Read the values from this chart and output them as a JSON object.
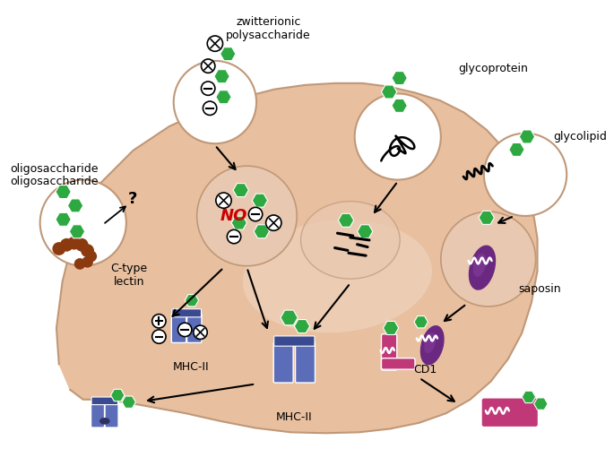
{
  "bg_color": "#FFFFFF",
  "cell_color": "#E8C0A0",
  "endo_color": "#DDB090",
  "green": "#2EA840",
  "blue": "#5B6DB8",
  "blue_dark": "#3A4A90",
  "pink": "#C03878",
  "purple": "#6B2880",
  "brown": "#8B3A10",
  "red": "#CC0000",
  "black": "#000000",
  "white": "#FFFFFF",
  "labels": {
    "zwitterionic": "zwitterionic\npolysaccharide",
    "glycoprotein": "glycoprotein",
    "glycolipid": "glycolipid",
    "oligosaccharide": "oligosaccharide",
    "c_type_lectin": "C-type\nlectin",
    "mhc2": "MHC-II",
    "cd1": "CD1",
    "saposin": "saposin",
    "no": "NO"
  }
}
